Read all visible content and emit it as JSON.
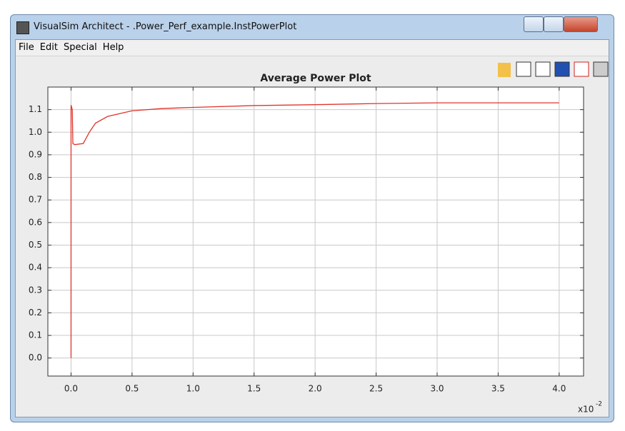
{
  "window": {
    "title": "VisualSim Architect - .Power_Perf_example.InstPowerPlot",
    "menu": [
      "File",
      "Edit",
      "Special",
      "Help"
    ]
  },
  "chart_data": {
    "type": "line",
    "title": "Average Power Plot",
    "x": [
      0,
      0,
      0.01,
      0.015,
      0.03,
      0.1,
      0.15,
      0.2,
      0.3,
      0.5,
      0.75,
      1.0,
      1.5,
      2.0,
      2.5,
      3.0,
      3.5,
      4.0
    ],
    "series": [
      {
        "color": "#e0352b",
        "values": [
          0,
          1.12,
          1.1,
          0.95,
          0.945,
          0.95,
          1.0,
          1.04,
          1.07,
          1.095,
          1.105,
          1.11,
          1.118,
          1.122,
          1.127,
          1.13,
          1.13,
          1.13
        ]
      }
    ],
    "xlim": [
      -0.19,
      4.2
    ],
    "xticks": [
      {
        "value": 0,
        "label": "0.0"
      },
      0.5,
      {
        "value": 1,
        "label": "1.0"
      },
      1.5,
      {
        "value": 2,
        "label": "2.0"
      },
      2.5,
      {
        "value": 3,
        "label": "3.0"
      },
      3.5,
      {
        "value": 4,
        "label": "4.0"
      }
    ],
    "x_axis_factor": "x10",
    "x_axis_factor_exponent": "-2",
    "ylim": [
      -0.08,
      1.2
    ],
    "yticks": [
      {
        "value": 0,
        "label": "0.0"
      },
      0.1,
      0.2,
      0.3,
      0.4,
      0.5,
      0.6,
      0.7,
      0.8,
      0.9,
      {
        "value": 1,
        "label": "1.0"
      },
      1.1
    ],
    "grid": true
  }
}
